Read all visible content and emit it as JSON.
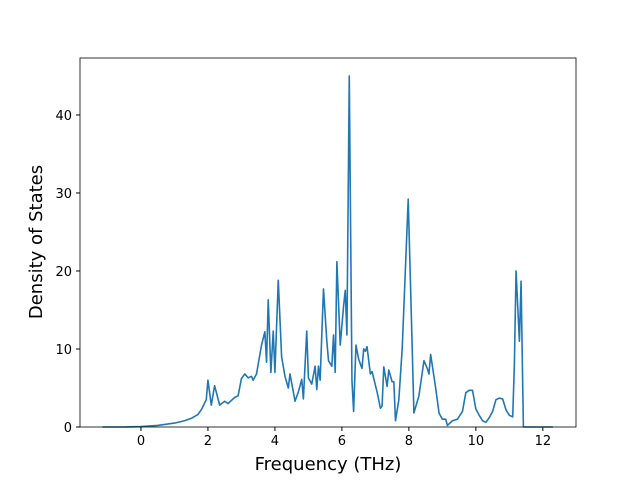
{
  "chart_data": {
    "type": "line",
    "xlabel": "Frequency (THz)",
    "ylabel": "Density of States",
    "xlim": [
      -1.82,
      12.99
    ],
    "ylim": [
      0,
      47.3
    ],
    "xticks": [
      0,
      2,
      4,
      6,
      8,
      10,
      12
    ],
    "yticks": [
      0,
      10,
      20,
      30,
      40
    ],
    "x": [
      -1.15,
      -0.5,
      0,
      0.5,
      1.0,
      1.3,
      1.5,
      1.7,
      1.8,
      1.95,
      2.0,
      2.1,
      2.2,
      2.35,
      2.5,
      2.6,
      2.8,
      2.9,
      3.0,
      3.1,
      3.2,
      3.3,
      3.35,
      3.45,
      3.6,
      3.7,
      3.75,
      3.8,
      3.88,
      3.95,
      4.0,
      4.1,
      4.2,
      4.3,
      4.4,
      4.45,
      4.55,
      4.6,
      4.7,
      4.8,
      4.85,
      4.95,
      5.0,
      5.1,
      5.2,
      5.25,
      5.3,
      5.35,
      5.45,
      5.55,
      5.6,
      5.7,
      5.75,
      5.8,
      5.85,
      5.95,
      6.05,
      6.1,
      6.15,
      6.22,
      6.3,
      6.35,
      6.42,
      6.5,
      6.6,
      6.65,
      6.7,
      6.75,
      6.85,
      6.9,
      7.05,
      7.15,
      7.2,
      7.25,
      7.35,
      7.4,
      7.5,
      7.55,
      7.6,
      7.7,
      7.8,
      7.98,
      8.1,
      8.15,
      8.3,
      8.45,
      8.55,
      8.6,
      8.65,
      8.8,
      8.9,
      9.0,
      9.1,
      9.15,
      9.3,
      9.45,
      9.6,
      9.7,
      9.8,
      9.9,
      10.0,
      10.1,
      10.2,
      10.3,
      10.4,
      10.5,
      10.6,
      10.7,
      10.8,
      10.9,
      11.0,
      11.1,
      11.15,
      11.2,
      11.3,
      11.35,
      11.4,
      11.42,
      12.3
    ],
    "series": [
      {
        "color": "#1f77b4",
        "values": [
          0,
          0,
          0.05,
          0.2,
          0.5,
          0.8,
          1.1,
          1.6,
          2.2,
          3.5,
          6,
          2.8,
          5.3,
          2.8,
          3.3,
          3,
          3.8,
          4,
          6.2,
          6.8,
          6.3,
          6.5,
          6,
          6.8,
          10.5,
          12.2,
          8.3,
          16.3,
          7,
          12.3,
          7,
          18.8,
          9,
          6.5,
          5,
          6.8,
          4.5,
          3.3,
          4.5,
          6.1,
          3.6,
          12.3,
          6.3,
          5.5,
          7.8,
          4.8,
          7.8,
          6,
          17.7,
          11,
          8.5,
          7.8,
          11.8,
          7,
          21.2,
          10.5,
          15.5,
          17.5,
          11.8,
          45,
          6,
          2,
          10.5,
          8.7,
          7.5,
          10,
          9.7,
          10.3,
          6.8,
          7.1,
          4.5,
          2.4,
          2.7,
          7.7,
          5.2,
          7.3,
          5.8,
          5.8,
          0.8,
          3.5,
          10,
          29.2,
          10,
          1.8,
          4,
          8.5,
          7.5,
          6.8,
          9.3,
          5,
          1.8,
          1,
          1,
          0.2,
          0.8,
          1,
          2,
          4.4,
          4.7,
          4.7,
          2.3,
          1.5,
          0.8,
          0.6,
          1.2,
          2,
          3.5,
          3.7,
          3.6,
          2.2,
          1.5,
          1.3,
          8,
          20,
          11,
          18.7,
          5,
          0,
          0
        ]
      }
    ]
  }
}
